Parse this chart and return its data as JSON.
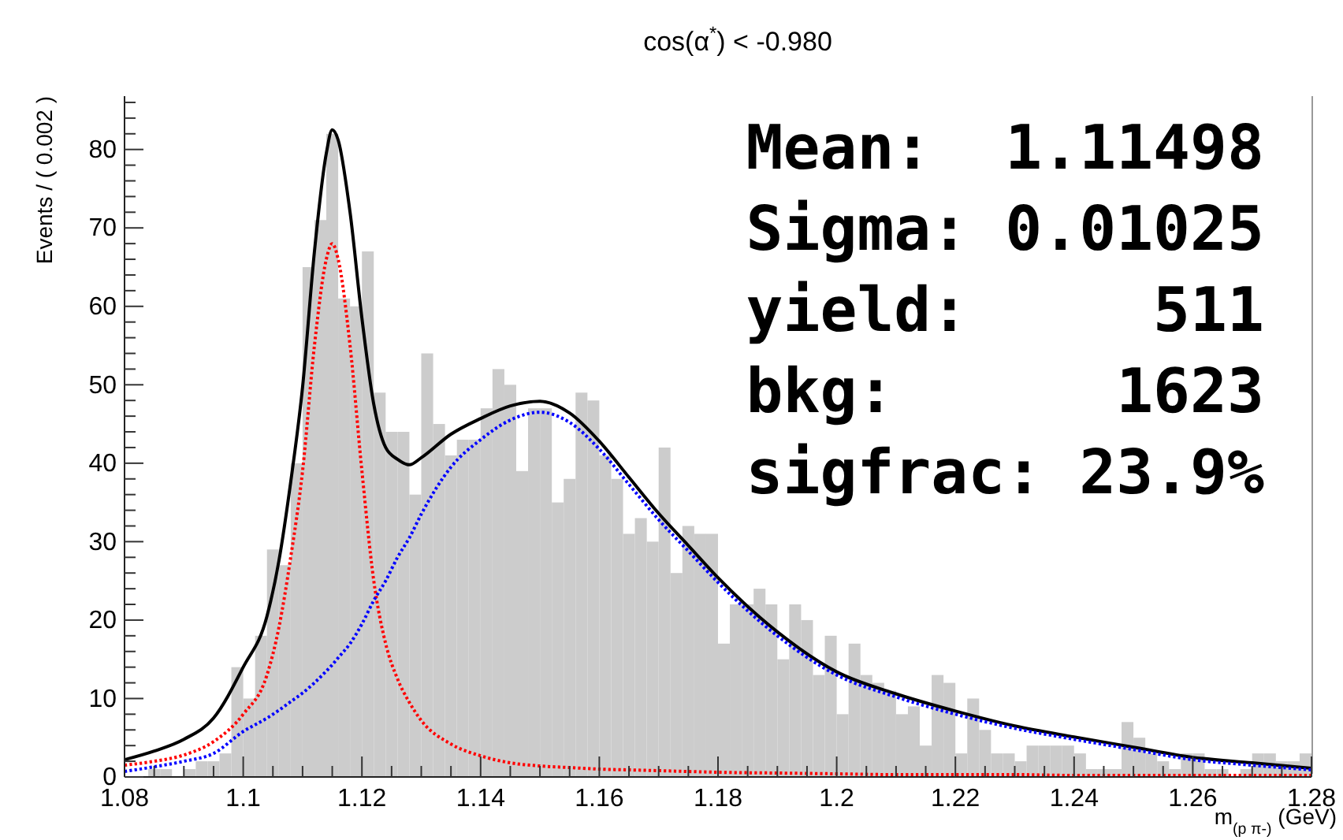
{
  "chart_data": {
    "type": "histogram",
    "title": "cos(α$^{*}$) < -0.980",
    "xlabel": "m$_{(p π-)}$ (GeV)",
    "ylabel": "Events / ( 0.002 )",
    "annotations": [
      "Mean:  1.11498",
      "Sigma: 0.01025",
      "yield:     511",
      "bkg:      1623",
      "sigfrac: 23.9%"
    ],
    "bins": [
      1.08,
      1.082,
      1.084,
      1.086,
      1.088,
      1.09,
      1.092,
      1.094,
      1.096,
      1.098,
      1.1,
      1.102,
      1.104,
      1.106,
      1.108,
      1.11,
      1.112,
      1.114,
      1.116,
      1.118,
      1.12,
      1.122,
      1.124,
      1.126,
      1.128,
      1.13,
      1.132,
      1.134,
      1.136,
      1.138,
      1.14,
      1.142,
      1.144,
      1.146,
      1.148,
      1.15,
      1.152,
      1.154,
      1.156,
      1.158,
      1.16,
      1.162,
      1.164,
      1.166,
      1.168,
      1.17,
      1.172,
      1.174,
      1.176,
      1.178,
      1.18,
      1.182,
      1.184,
      1.186,
      1.188,
      1.19,
      1.192,
      1.194,
      1.196,
      1.198,
      1.2,
      1.202,
      1.204,
      1.206,
      1.208,
      1.21,
      1.212,
      1.214,
      1.216,
      1.218,
      1.22,
      1.222,
      1.224,
      1.226,
      1.228,
      1.23,
      1.232,
      1.234,
      1.236,
      1.238,
      1.24,
      1.242,
      1.244,
      1.246,
      1.248,
      1.25,
      1.252,
      1.254,
      1.256,
      1.258,
      1.26,
      1.262,
      1.264,
      1.266,
      1.268,
      1.27,
      1.272,
      1.274,
      1.276,
      1.278,
      1.28
    ],
    "series": [
      {
        "color": "#cccccc",
        "values": [
          0,
          0,
          1,
          1,
          0,
          1,
          2,
          2,
          3,
          14,
          10,
          18,
          29,
          27,
          40,
          65,
          71,
          82,
          61,
          60,
          67,
          49,
          44,
          44,
          36,
          54,
          45,
          41,
          43,
          43,
          47,
          52,
          50,
          39,
          47,
          47,
          35,
          38,
          49,
          48,
          41,
          38,
          31,
          33,
          30,
          42,
          26,
          32,
          31,
          31,
          17,
          22,
          22,
          24,
          22,
          15,
          22,
          20,
          13,
          18,
          8,
          17,
          13,
          12,
          11,
          8,
          9,
          4,
          13,
          12,
          3,
          10,
          6,
          3,
          3,
          2,
          4,
          4,
          4,
          4,
          3,
          1,
          1,
          1,
          7,
          5,
          3,
          2,
          1,
          3,
          3,
          1,
          1,
          0,
          1,
          3,
          3,
          2,
          2,
          3
        ]
      },
      {
        "type": "line",
        "color": "#000000",
        "line_style": "solid",
        "x": [
          1.08,
          1.085,
          1.09,
          1.095,
          1.1,
          1.104,
          1.106,
          1.108,
          1.11,
          1.112,
          1.114,
          1.115,
          1.116,
          1.118,
          1.12,
          1.122,
          1.124,
          1.126,
          1.128,
          1.13,
          1.135,
          1.14,
          1.145,
          1.15,
          1.155,
          1.16,
          1.165,
          1.17,
          1.175,
          1.18,
          1.19,
          1.2,
          1.21,
          1.22,
          1.23,
          1.24,
          1.25,
          1.26,
          1.27,
          1.28
        ],
        "values": [
          2.2,
          3.3,
          4.8,
          7.5,
          14,
          20.5,
          27.5,
          37.6,
          49.7,
          67,
          79.5,
          82.5,
          81.2,
          72,
          58.5,
          47.5,
          42,
          40.5,
          39.8,
          40.7,
          43.7,
          45.7,
          47.3,
          47.9,
          46.4,
          42.8,
          38.2,
          33.6,
          29.5,
          25.4,
          18.5,
          13.4,
          10.6,
          8.4,
          6.5,
          5.1,
          3.8,
          2.5,
          1.8,
          1.1
        ]
      },
      {
        "type": "line",
        "color": "#ff0000",
        "line_style": "dotted",
        "x": [
          1.08,
          1.085,
          1.09,
          1.095,
          1.1,
          1.104,
          1.106,
          1.108,
          1.11,
          1.112,
          1.114,
          1.115,
          1.116,
          1.118,
          1.12,
          1.122,
          1.124,
          1.126,
          1.128,
          1.13,
          1.135,
          1.14,
          1.145,
          1.15,
          1.155,
          1.16,
          1.165,
          1.17,
          1.175,
          1.18,
          1.19,
          1.2,
          1.21,
          1.22,
          1.23,
          1.24,
          1.25,
          1.26,
          1.27,
          1.28
        ],
        "values": [
          1.5,
          2.0,
          2.8,
          4.5,
          8,
          13,
          19,
          28,
          39,
          55,
          66,
          68,
          66,
          55,
          39,
          25,
          17,
          12.5,
          9.5,
          7.2,
          4.2,
          2.7,
          1.8,
          1.4,
          1.2,
          1.0,
          0.9,
          0.8,
          0.7,
          0.6,
          0.5,
          0.4,
          0.3,
          0.3,
          0.3,
          0.2,
          0.2,
          0.2,
          0.2,
          0.2
        ]
      },
      {
        "type": "line",
        "color": "#0000ff",
        "line_style": "dotted",
        "x": [
          1.08,
          1.085,
          1.09,
          1.095,
          1.1,
          1.104,
          1.106,
          1.108,
          1.11,
          1.112,
          1.114,
          1.115,
          1.116,
          1.118,
          1.12,
          1.122,
          1.124,
          1.126,
          1.128,
          1.13,
          1.135,
          1.14,
          1.145,
          1.15,
          1.155,
          1.16,
          1.165,
          1.17,
          1.175,
          1.18,
          1.19,
          1.2,
          1.21,
          1.22,
          1.23,
          1.24,
          1.25,
          1.26,
          1.27,
          1.28
        ],
        "values": [
          0.7,
          1.3,
          2.0,
          3.0,
          5.8,
          7.5,
          8.5,
          9.6,
          10.7,
          12,
          13.5,
          14.3,
          15.2,
          17,
          19.5,
          22.5,
          25,
          28,
          30.5,
          33.5,
          39.5,
          43,
          45.5,
          46.5,
          45.2,
          41.8,
          37.3,
          32.8,
          28.8,
          24.8,
          18,
          13,
          10.2,
          8,
          6.2,
          4.8,
          3.5,
          2.2,
          1.5,
          0.9
        ]
      }
    ],
    "xlim": [
      1.08,
      1.28
    ],
    "ylim": [
      0,
      86.8
    ],
    "xticks": [
      1.08,
      {
        "value": 1.085,
        "label": null
      },
      {
        "value": 1.09,
        "label": null
      },
      {
        "value": 1.095,
        "label": null
      },
      1.1,
      {
        "value": 1.105,
        "label": null
      },
      {
        "value": 1.11,
        "label": null
      },
      {
        "value": 1.115,
        "label": null
      },
      1.12,
      {
        "value": 1.125,
        "label": null
      },
      {
        "value": 1.13,
        "label": null
      },
      {
        "value": 1.135,
        "label": null
      },
      1.14,
      {
        "value": 1.145,
        "label": null
      },
      {
        "value": 1.15,
        "label": null
      },
      {
        "value": 1.155,
        "label": null
      },
      1.16,
      {
        "value": 1.165,
        "label": null
      },
      {
        "value": 1.17,
        "label": null
      },
      {
        "value": 1.175,
        "label": null
      },
      1.18,
      {
        "value": 1.185,
        "label": null
      },
      {
        "value": 1.19,
        "label": null
      },
      {
        "value": 1.195,
        "label": null
      },
      1.2,
      {
        "value": 1.205,
        "label": null
      },
      {
        "value": 1.21,
        "label": null
      },
      {
        "value": 1.215,
        "label": null
      },
      1.22,
      {
        "value": 1.225,
        "label": null
      },
      {
        "value": 1.23,
        "label": null
      },
      {
        "value": 1.235,
        "label": null
      },
      1.24,
      {
        "value": 1.245,
        "label": null
      },
      {
        "value": 1.25,
        "label": null
      },
      {
        "value": 1.255,
        "label": null
      },
      1.26,
      {
        "value": 1.265,
        "label": null
      },
      {
        "value": 1.27,
        "label": null
      },
      {
        "value": 1.275,
        "label": null
      },
      1.28
    ],
    "yticks": [
      0,
      {
        "value": 2,
        "label": null
      },
      {
        "value": 4,
        "label": null
      },
      {
        "value": 6,
        "label": null
      },
      {
        "value": 8,
        "label": null
      },
      10,
      {
        "value": 12,
        "label": null
      },
      {
        "value": 14,
        "label": null
      },
      {
        "value": 16,
        "label": null
      },
      {
        "value": 18,
        "label": null
      },
      20,
      {
        "value": 22,
        "label": null
      },
      {
        "value": 24,
        "label": null
      },
      {
        "value": 26,
        "label": null
      },
      {
        "value": 28,
        "label": null
      },
      30,
      {
        "value": 32,
        "label": null
      },
      {
        "value": 34,
        "label": null
      },
      {
        "value": 36,
        "label": null
      },
      {
        "value": 38,
        "label": null
      },
      40,
      {
        "value": 42,
        "label": null
      },
      {
        "value": 44,
        "label": null
      },
      {
        "value": 46,
        "label": null
      },
      {
        "value": 48,
        "label": null
      },
      50,
      {
        "value": 52,
        "label": null
      },
      {
        "value": 54,
        "label": null
      },
      {
        "value": 56,
        "label": null
      },
      {
        "value": 58,
        "label": null
      },
      60,
      {
        "value": 62,
        "label": null
      },
      {
        "value": 64,
        "label": null
      },
      {
        "value": 66,
        "label": null
      },
      {
        "value": 68,
        "label": null
      },
      70,
      {
        "value": 72,
        "label": null
      },
      {
        "value": 74,
        "label": null
      },
      {
        "value": 76,
        "label": null
      },
      {
        "value": 78,
        "label": null
      },
      80,
      {
        "value": 82,
        "label": null
      },
      {
        "value": 84,
        "label": null
      },
      {
        "value": 86,
        "label": null
      }
    ]
  }
}
